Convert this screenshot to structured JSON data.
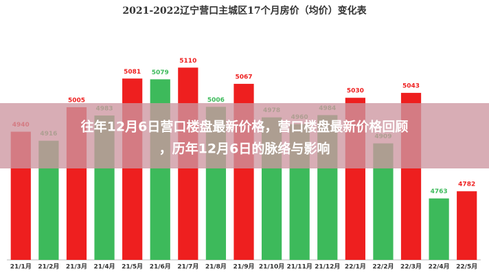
{
  "chart_data": {
    "type": "bar",
    "title": "2021-2022辽宁营口主城区17个月房价（均价）变化表",
    "categories": [
      "21/1月",
      "21/2月",
      "21/3月",
      "21/4月",
      "21/5月",
      "21/6月",
      "21/7月",
      "21/8月",
      "21/9月",
      "21/10月",
      "21/11月",
      "21/12月",
      "22/1月",
      "22/2月",
      "22/3月",
      "22/4月",
      "22/5月"
    ],
    "values": [
      4940,
      4916,
      5005,
      4983,
      5081,
      5079,
      5110,
      5006,
      5067,
      4978,
      4960,
      4984,
      5030,
      4909,
      5043,
      4763,
      4782
    ],
    "colors": [
      "#ee1f1f",
      "#3dba5b",
      "#ee1f1f",
      "#3dba5b",
      "#ee1f1f",
      "#3dba5b",
      "#ee1f1f",
      "#3dba5b",
      "#ee1f1f",
      "#3dba5b",
      "#3dba5b",
      "#3dba5b",
      "#ee1f1f",
      "#3dba5b",
      "#ee1f1f",
      "#3dba5b",
      "#ee1f1f"
    ],
    "ylim": [
      4600,
      5200
    ]
  },
  "overlay": {
    "lines": [
      "往年12月6日营口楼盘最新价格，营口楼盘最新价格回顾",
      "，历年12月6日的脉络与影响"
    ]
  }
}
